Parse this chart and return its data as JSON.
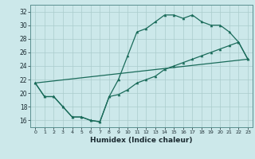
{
  "title": "",
  "xlabel": "Humidex (Indice chaleur)",
  "ylabel": "",
  "bg_color": "#cce8ea",
  "grid_color": "#aacccc",
  "line_color": "#1a6b5a",
  "xlim": [
    -0.5,
    23.5
  ],
  "ylim": [
    15,
    33
  ],
  "yticks": [
    16,
    18,
    20,
    22,
    24,
    26,
    28,
    30,
    32
  ],
  "xticks": [
    0,
    1,
    2,
    3,
    4,
    5,
    6,
    7,
    8,
    9,
    10,
    11,
    12,
    13,
    14,
    15,
    16,
    17,
    18,
    19,
    20,
    21,
    22,
    23
  ],
  "line1_y": [
    21.5,
    19.5,
    19.5,
    18.0,
    16.5,
    16.5,
    16.0,
    15.8,
    19.5,
    22.0,
    25.5,
    29.0,
    29.5,
    30.5,
    31.5,
    31.5,
    31.0,
    31.5,
    30.5,
    30.0,
    30.0,
    29.0,
    27.5,
    25.0
  ],
  "line2_y": [
    21.5,
    19.5,
    19.5,
    18.0,
    16.5,
    16.5,
    16.0,
    15.8,
    19.5,
    19.8,
    20.5,
    21.5,
    22.0,
    22.5,
    23.5,
    24.0,
    24.5,
    25.0,
    25.5,
    26.0,
    26.5,
    27.0,
    27.5,
    25.0
  ],
  "line3_y": [
    21.5,
    25.0
  ],
  "line3_x": [
    0,
    23
  ]
}
